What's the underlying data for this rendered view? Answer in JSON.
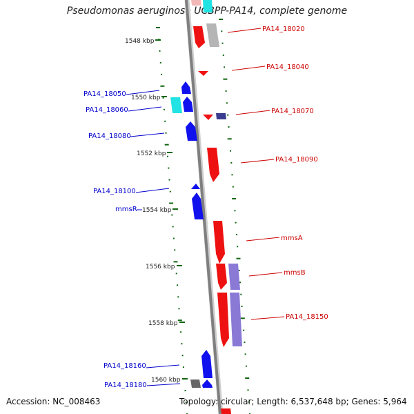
{
  "title": "Pseudomonas aeruginosa UCBPP-PA14, complete genome",
  "accession": "Accession: NC_008463",
  "topology": "Topology: circular; Length: 6,537,648 bp; Genes: 5,964",
  "colors": {
    "forward": "#ee1111",
    "reverse": "#1111ee",
    "tick": "#116611",
    "backbone": "#8c8c8c",
    "label_forward": "#cc0000",
    "label_reverse": "#0000cc"
  },
  "scale_labels": [
    "1548 kbp",
    "1550 kbp",
    "1552 kbp",
    "1554 kbp",
    "1556 kbp",
    "1558 kbp",
    "1560 kbp"
  ],
  "genes_right": [
    "PA14_18020",
    "PA14_18040",
    "PA14_18070",
    "PA14_18090",
    "mmsA",
    "mmsB",
    "PA14_18150"
  ],
  "genes_left": [
    "PA14_18050",
    "PA14_18060",
    "PA14_18080",
    "PA14_18100",
    "mmsR",
    "PA14_18160",
    "PA14_18180"
  ]
}
